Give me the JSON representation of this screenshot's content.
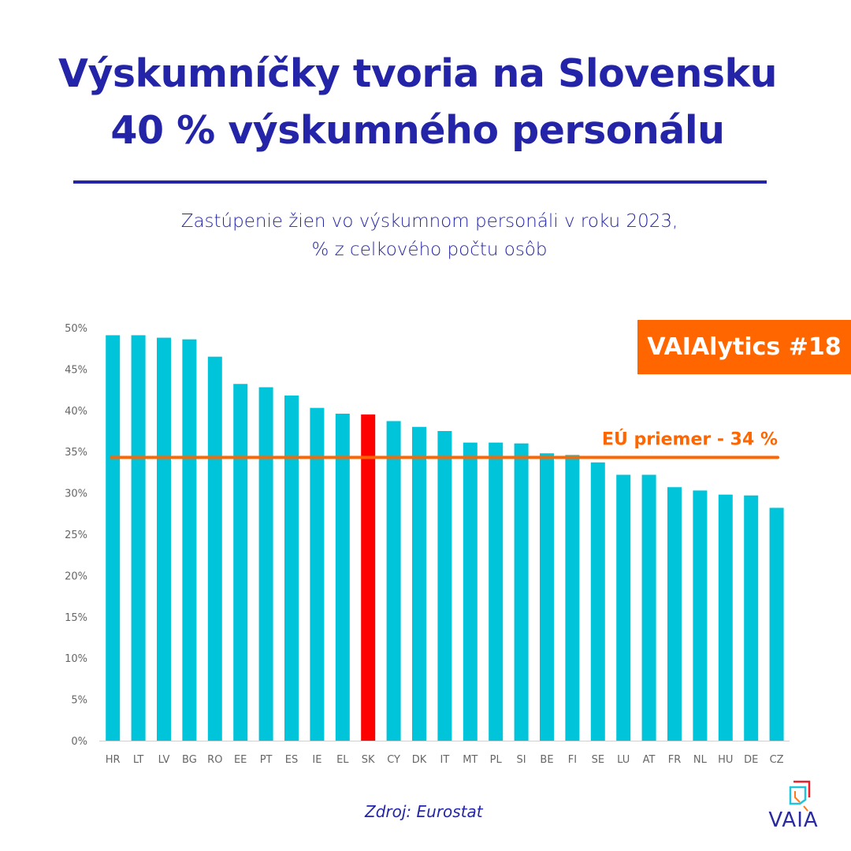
{
  "header": {
    "title_line1": "Výskumníčky tvoria na Slovensku",
    "title_line2": "40 % výskumného personálu"
  },
  "badge": "VAIAlytics #18",
  "source": "Zdroj: Eurostat",
  "logo": {
    "text": "VAIA"
  },
  "colors": {
    "bar": "#00c4da",
    "highlight": "#ff0000",
    "average_line": "#ff6600",
    "title": "#2424a8"
  },
  "chart_data": {
    "type": "bar",
    "title": "Zastúpenie žien vo výskumnom personáli v roku 2023,",
    "subtitle": "% z celkového počtu osôb",
    "categories": [
      "HR",
      "LT",
      "LV",
      "BG",
      "RO",
      "EE",
      "PT",
      "ES",
      "IE",
      "EL",
      "SK",
      "CY",
      "DK",
      "IT",
      "MT",
      "PL",
      "SI",
      "BE",
      "FI",
      "SE",
      "LU",
      "AT",
      "FR",
      "NL",
      "HU",
      "DE",
      "CZ"
    ],
    "values": [
      49.1,
      49.1,
      48.8,
      48.6,
      46.5,
      43.2,
      42.8,
      41.8,
      40.3,
      39.6,
      39.5,
      38.7,
      38.0,
      37.5,
      36.1,
      36.1,
      36.0,
      34.8,
      34.6,
      33.7,
      32.2,
      32.2,
      30.7,
      30.3,
      29.8,
      29.7,
      28.2
    ],
    "highlight": "SK",
    "ylim": [
      0,
      50
    ],
    "yticks": [
      "0%",
      "5%",
      "10%",
      "15%",
      "20%",
      "25%",
      "30%",
      "35%",
      "40%",
      "45%",
      "50%"
    ],
    "grid": false,
    "average": {
      "value": 34.3,
      "label": "EÚ priemer - 34 %"
    }
  }
}
